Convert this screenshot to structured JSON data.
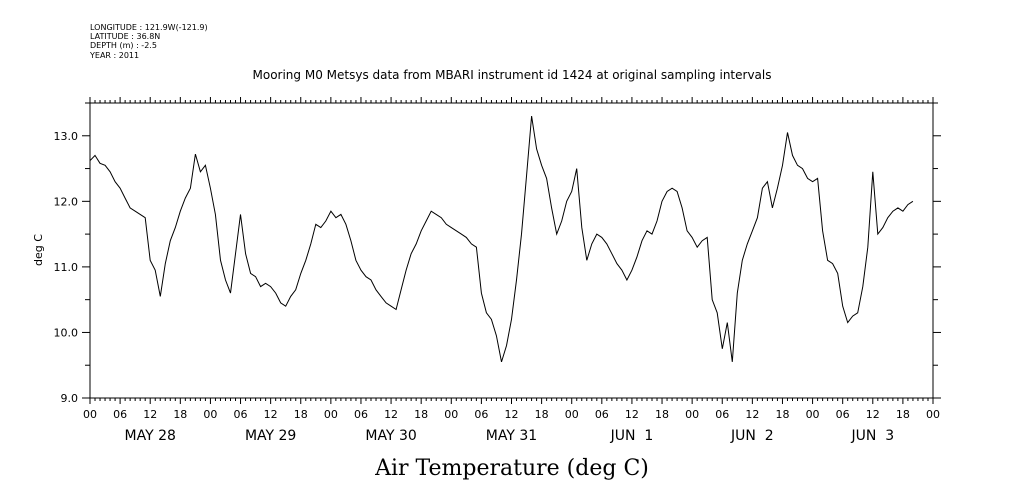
{
  "header": {
    "longitude": "LONGITUDE : 121.9W(-121.9)",
    "latitude": "LATITUDE : 36.8N",
    "depth": "DEPTH (m) : -2.5",
    "year": "YEAR : 2011"
  },
  "chart_data": {
    "type": "line",
    "title": "Mooring M0 Metsys data from MBARI instrument id 1424 at original sampling intervals",
    "xlabel": "Air Temperature (deg C)",
    "ylabel": "deg C",
    "ylim": [
      9.0,
      13.5
    ],
    "yticks": [
      9.0,
      10.0,
      11.0,
      12.0,
      13.0
    ],
    "ytick_labels": [
      "9.0",
      "10.0",
      "11.0",
      "12.0",
      "13.0"
    ],
    "x_hours_labels": [
      "00",
      "06",
      "12",
      "18",
      "00",
      "06",
      "12",
      "18",
      "00",
      "06",
      "12",
      "18",
      "00",
      "06",
      "12",
      "18",
      "00",
      "06",
      "12",
      "18",
      "00",
      "06",
      "12",
      "18",
      "00",
      "06",
      "12",
      "18",
      "00"
    ],
    "date_labels": [
      "MAY 28",
      "MAY 29",
      "MAY 30",
      "MAY 31",
      "JUN  1",
      "JUN  2",
      "JUN  3"
    ],
    "xlim_hours": [
      0,
      168
    ],
    "series": [
      {
        "points": [
          [
            0,
            12.62
          ],
          [
            1,
            12.7
          ],
          [
            2,
            12.58
          ],
          [
            3,
            12.55
          ],
          [
            4,
            12.45
          ],
          [
            5,
            12.3
          ],
          [
            6,
            12.2
          ],
          [
            7,
            12.05
          ],
          [
            8,
            11.9
          ],
          [
            9,
            11.85
          ],
          [
            10,
            11.8
          ],
          [
            11,
            11.75
          ],
          [
            12,
            11.1
          ],
          [
            13,
            10.95
          ],
          [
            14,
            10.55
          ],
          [
            15,
            11.05
          ],
          [
            16,
            11.4
          ],
          [
            17,
            11.6
          ],
          [
            18,
            11.85
          ],
          [
            19,
            12.05
          ],
          [
            20,
            12.2
          ],
          [
            21,
            12.72
          ],
          [
            22,
            12.45
          ],
          [
            23,
            12.55
          ],
          [
            24,
            12.2
          ],
          [
            25,
            11.8
          ],
          [
            26,
            11.1
          ],
          [
            27,
            10.8
          ],
          [
            28,
            10.6
          ],
          [
            29,
            11.2
          ],
          [
            30,
            11.8
          ],
          [
            31,
            11.2
          ],
          [
            32,
            10.9
          ],
          [
            33,
            10.85
          ],
          [
            34,
            10.7
          ],
          [
            35,
            10.75
          ],
          [
            36,
            10.7
          ],
          [
            37,
            10.6
          ],
          [
            38,
            10.45
          ],
          [
            39,
            10.4
          ],
          [
            40,
            10.55
          ],
          [
            41,
            10.65
          ],
          [
            42,
            10.9
          ],
          [
            43,
            11.1
          ],
          [
            44,
            11.35
          ],
          [
            45,
            11.65
          ],
          [
            46,
            11.6
          ],
          [
            47,
            11.7
          ],
          [
            48,
            11.85
          ],
          [
            49,
            11.75
          ],
          [
            50,
            11.8
          ],
          [
            51,
            11.65
          ],
          [
            52,
            11.4
          ],
          [
            53,
            11.1
          ],
          [
            54,
            10.95
          ],
          [
            55,
            10.85
          ],
          [
            56,
            10.8
          ],
          [
            57,
            10.65
          ],
          [
            58,
            10.55
          ],
          [
            59,
            10.45
          ],
          [
            60,
            10.4
          ],
          [
            61,
            10.35
          ],
          [
            62,
            10.65
          ],
          [
            63,
            10.95
          ],
          [
            64,
            11.2
          ],
          [
            65,
            11.35
          ],
          [
            66,
            11.55
          ],
          [
            67,
            11.7
          ],
          [
            68,
            11.85
          ],
          [
            69,
            11.8
          ],
          [
            70,
            11.75
          ],
          [
            71,
            11.65
          ],
          [
            72,
            11.6
          ],
          [
            73,
            11.55
          ],
          [
            74,
            11.5
          ],
          [
            75,
            11.45
          ],
          [
            76,
            11.35
          ],
          [
            77,
            11.3
          ],
          [
            78,
            10.6
          ],
          [
            79,
            10.3
          ],
          [
            80,
            10.2
          ],
          [
            81,
            9.95
          ],
          [
            82,
            9.55
          ],
          [
            83,
            9.8
          ],
          [
            84,
            10.2
          ],
          [
            85,
            10.8
          ],
          [
            86,
            11.5
          ],
          [
            87,
            12.4
          ],
          [
            88,
            13.3
          ],
          [
            89,
            12.8
          ],
          [
            90,
            12.55
          ],
          [
            91,
            12.35
          ],
          [
            92,
            11.9
          ],
          [
            93,
            11.5
          ],
          [
            94,
            11.7
          ],
          [
            95,
            12.0
          ],
          [
            96,
            12.15
          ],
          [
            97,
            12.5
          ],
          [
            98,
            11.6
          ],
          [
            99,
            11.1
          ],
          [
            100,
            11.35
          ],
          [
            101,
            11.5
          ],
          [
            102,
            11.45
          ],
          [
            103,
            11.35
          ],
          [
            104,
            11.2
          ],
          [
            105,
            11.05
          ],
          [
            106,
            10.95
          ],
          [
            107,
            10.8
          ],
          [
            108,
            10.95
          ],
          [
            109,
            11.15
          ],
          [
            110,
            11.4
          ],
          [
            111,
            11.55
          ],
          [
            112,
            11.5
          ],
          [
            113,
            11.7
          ],
          [
            114,
            12.0
          ],
          [
            115,
            12.15
          ],
          [
            116,
            12.2
          ],
          [
            117,
            12.15
          ],
          [
            118,
            11.9
          ],
          [
            119,
            11.55
          ],
          [
            120,
            11.45
          ],
          [
            121,
            11.3
          ],
          [
            122,
            11.4
          ],
          [
            123,
            11.45
          ],
          [
            124,
            10.5
          ],
          [
            125,
            10.3
          ],
          [
            126,
            9.75
          ],
          [
            127,
            10.15
          ],
          [
            128,
            9.55
          ],
          [
            129,
            10.6
          ],
          [
            130,
            11.1
          ],
          [
            131,
            11.35
          ],
          [
            132,
            11.55
          ],
          [
            133,
            11.75
          ],
          [
            134,
            12.2
          ],
          [
            135,
            12.3
          ],
          [
            136,
            11.9
          ],
          [
            137,
            12.2
          ],
          [
            138,
            12.55
          ],
          [
            139,
            13.05
          ],
          [
            140,
            12.7
          ],
          [
            141,
            12.55
          ],
          [
            142,
            12.5
          ],
          [
            143,
            12.35
          ],
          [
            144,
            12.3
          ],
          [
            145,
            12.35
          ],
          [
            146,
            11.55
          ],
          [
            147,
            11.1
          ],
          [
            148,
            11.05
          ],
          [
            149,
            10.9
          ],
          [
            150,
            10.4
          ],
          [
            151,
            10.15
          ],
          [
            152,
            10.25
          ],
          [
            153,
            10.3
          ],
          [
            154,
            10.7
          ],
          [
            155,
            11.3
          ],
          [
            156,
            12.45
          ],
          [
            157,
            11.5
          ],
          [
            158,
            11.6
          ],
          [
            159,
            11.75
          ],
          [
            160,
            11.85
          ],
          [
            161,
            11.9
          ],
          [
            162,
            11.85
          ],
          [
            163,
            11.95
          ],
          [
            164,
            12.0
          ]
        ]
      }
    ],
    "grid": false
  }
}
